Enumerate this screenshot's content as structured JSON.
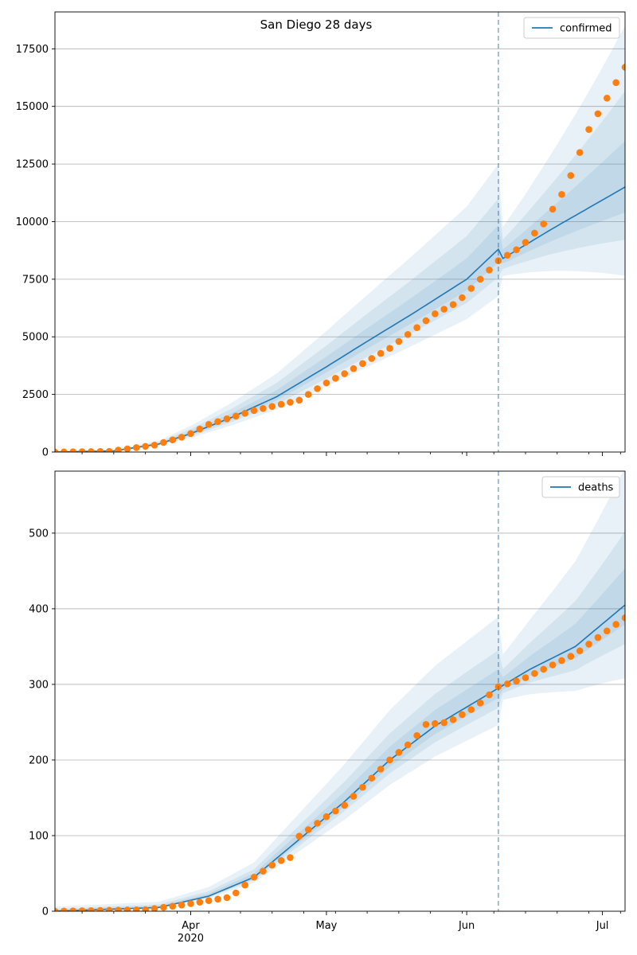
{
  "figure_title": "San Diego 28 days",
  "colors": {
    "model_line": "#1f77b4",
    "observed": "#ff7f0e",
    "band": "#1f77b4",
    "grid": "#b0b0b0",
    "axis": "#000000"
  },
  "chart_data": [
    {
      "type": "line",
      "series_name": "confirmed",
      "legend_position": "top-right",
      "x_axis": "date",
      "xlim": [
        "2020-03-02",
        "2020-07-06"
      ],
      "ylim": [
        0,
        19100
      ],
      "yticks": [
        0,
        2500,
        5000,
        7500,
        10000,
        12500,
        15000,
        17500
      ],
      "grid": "y",
      "forecast_start": "2020-06-08",
      "observed_knots": [
        [
          "2020-03-02",
          0
        ],
        [
          "2020-03-14",
          30
        ],
        [
          "2020-03-24",
          300
        ],
        [
          "2020-03-31",
          700
        ],
        [
          "2020-04-05",
          1200
        ],
        [
          "2020-04-15",
          1800
        ],
        [
          "2020-04-25",
          2250
        ],
        [
          "2020-05-01",
          3000
        ],
        [
          "2020-05-05",
          3400
        ],
        [
          "2020-05-15",
          4500
        ],
        [
          "2020-05-25",
          6000
        ],
        [
          "2020-05-30",
          6500
        ],
        [
          "2020-06-04",
          7500
        ],
        [
          "2020-06-08",
          8300
        ],
        [
          "2020-06-13",
          8900
        ],
        [
          "2020-06-18",
          9900
        ],
        [
          "2020-06-23",
          11500
        ],
        [
          "2020-06-28",
          14000
        ],
        [
          "2020-07-03",
          15700
        ],
        [
          "2020-07-06",
          16700
        ]
      ],
      "model_knots": [
        [
          "2020-03-02",
          0
        ],
        [
          "2020-03-15",
          50
        ],
        [
          "2020-03-25",
          350
        ],
        [
          "2020-04-01",
          800
        ],
        [
          "2020-04-10",
          1500
        ],
        [
          "2020-04-20",
          2400
        ],
        [
          "2020-05-01",
          3700
        ],
        [
          "2020-05-10",
          4800
        ],
        [
          "2020-05-20",
          6000
        ],
        [
          "2020-06-01",
          7500
        ],
        [
          "2020-06-08",
          8800
        ],
        [
          "2020-06-09",
          8400
        ],
        [
          "2020-06-20",
          9700
        ],
        [
          "2020-07-06",
          11500
        ]
      ],
      "band_half_widths": [
        0.12,
        0.25,
        0.42
      ]
    },
    {
      "type": "line",
      "series_name": "deaths",
      "legend_position": "top-right",
      "x_axis": "date",
      "xlim": [
        "2020-03-02",
        "2020-07-06"
      ],
      "ylim": [
        0,
        582
      ],
      "yticks": [
        0,
        100,
        200,
        300,
        400,
        500
      ],
      "grid": "y",
      "forecast_start": "2020-06-08",
      "xtick_labels": [
        {
          "date": "2020-04-01",
          "label": "Apr"
        },
        {
          "date": "2020-05-01",
          "label": "May"
        },
        {
          "date": "2020-06-01",
          "label": "Jun"
        },
        {
          "date": "2020-07-01",
          "label": "Jul"
        }
      ],
      "year_label": "2020",
      "observed_knots": [
        [
          "2020-03-02",
          0
        ],
        [
          "2020-03-22",
          2
        ],
        [
          "2020-03-31",
          9
        ],
        [
          "2020-04-10",
          19
        ],
        [
          "2020-04-15",
          45
        ],
        [
          "2020-04-20",
          65
        ],
        [
          "2020-04-23",
          71
        ],
        [
          "2020-04-24",
          95
        ],
        [
          "2020-05-01",
          125
        ],
        [
          "2020-05-05",
          140
        ],
        [
          "2020-05-10",
          170
        ],
        [
          "2020-05-15",
          200
        ],
        [
          "2020-05-20",
          225
        ],
        [
          "2020-05-23",
          247
        ],
        [
          "2020-05-28",
          250
        ],
        [
          "2020-06-03",
          270
        ],
        [
          "2020-06-08",
          297
        ],
        [
          "2020-06-13",
          306
        ],
        [
          "2020-06-18",
          320
        ],
        [
          "2020-06-25",
          340
        ],
        [
          "2020-06-30",
          362
        ],
        [
          "2020-07-06",
          388
        ]
      ],
      "model_knots": [
        [
          "2020-03-02",
          0
        ],
        [
          "2020-03-25",
          5
        ],
        [
          "2020-04-05",
          20
        ],
        [
          "2020-04-15",
          45
        ],
        [
          "2020-04-25",
          95
        ],
        [
          "2020-05-05",
          145
        ],
        [
          "2020-05-15",
          200
        ],
        [
          "2020-05-25",
          245
        ],
        [
          "2020-06-08",
          295
        ],
        [
          "2020-06-15",
          320
        ],
        [
          "2020-06-25",
          350
        ],
        [
          "2020-07-06",
          405
        ]
      ],
      "band_half_widths": [
        0.08,
        0.16,
        0.3
      ]
    }
  ]
}
